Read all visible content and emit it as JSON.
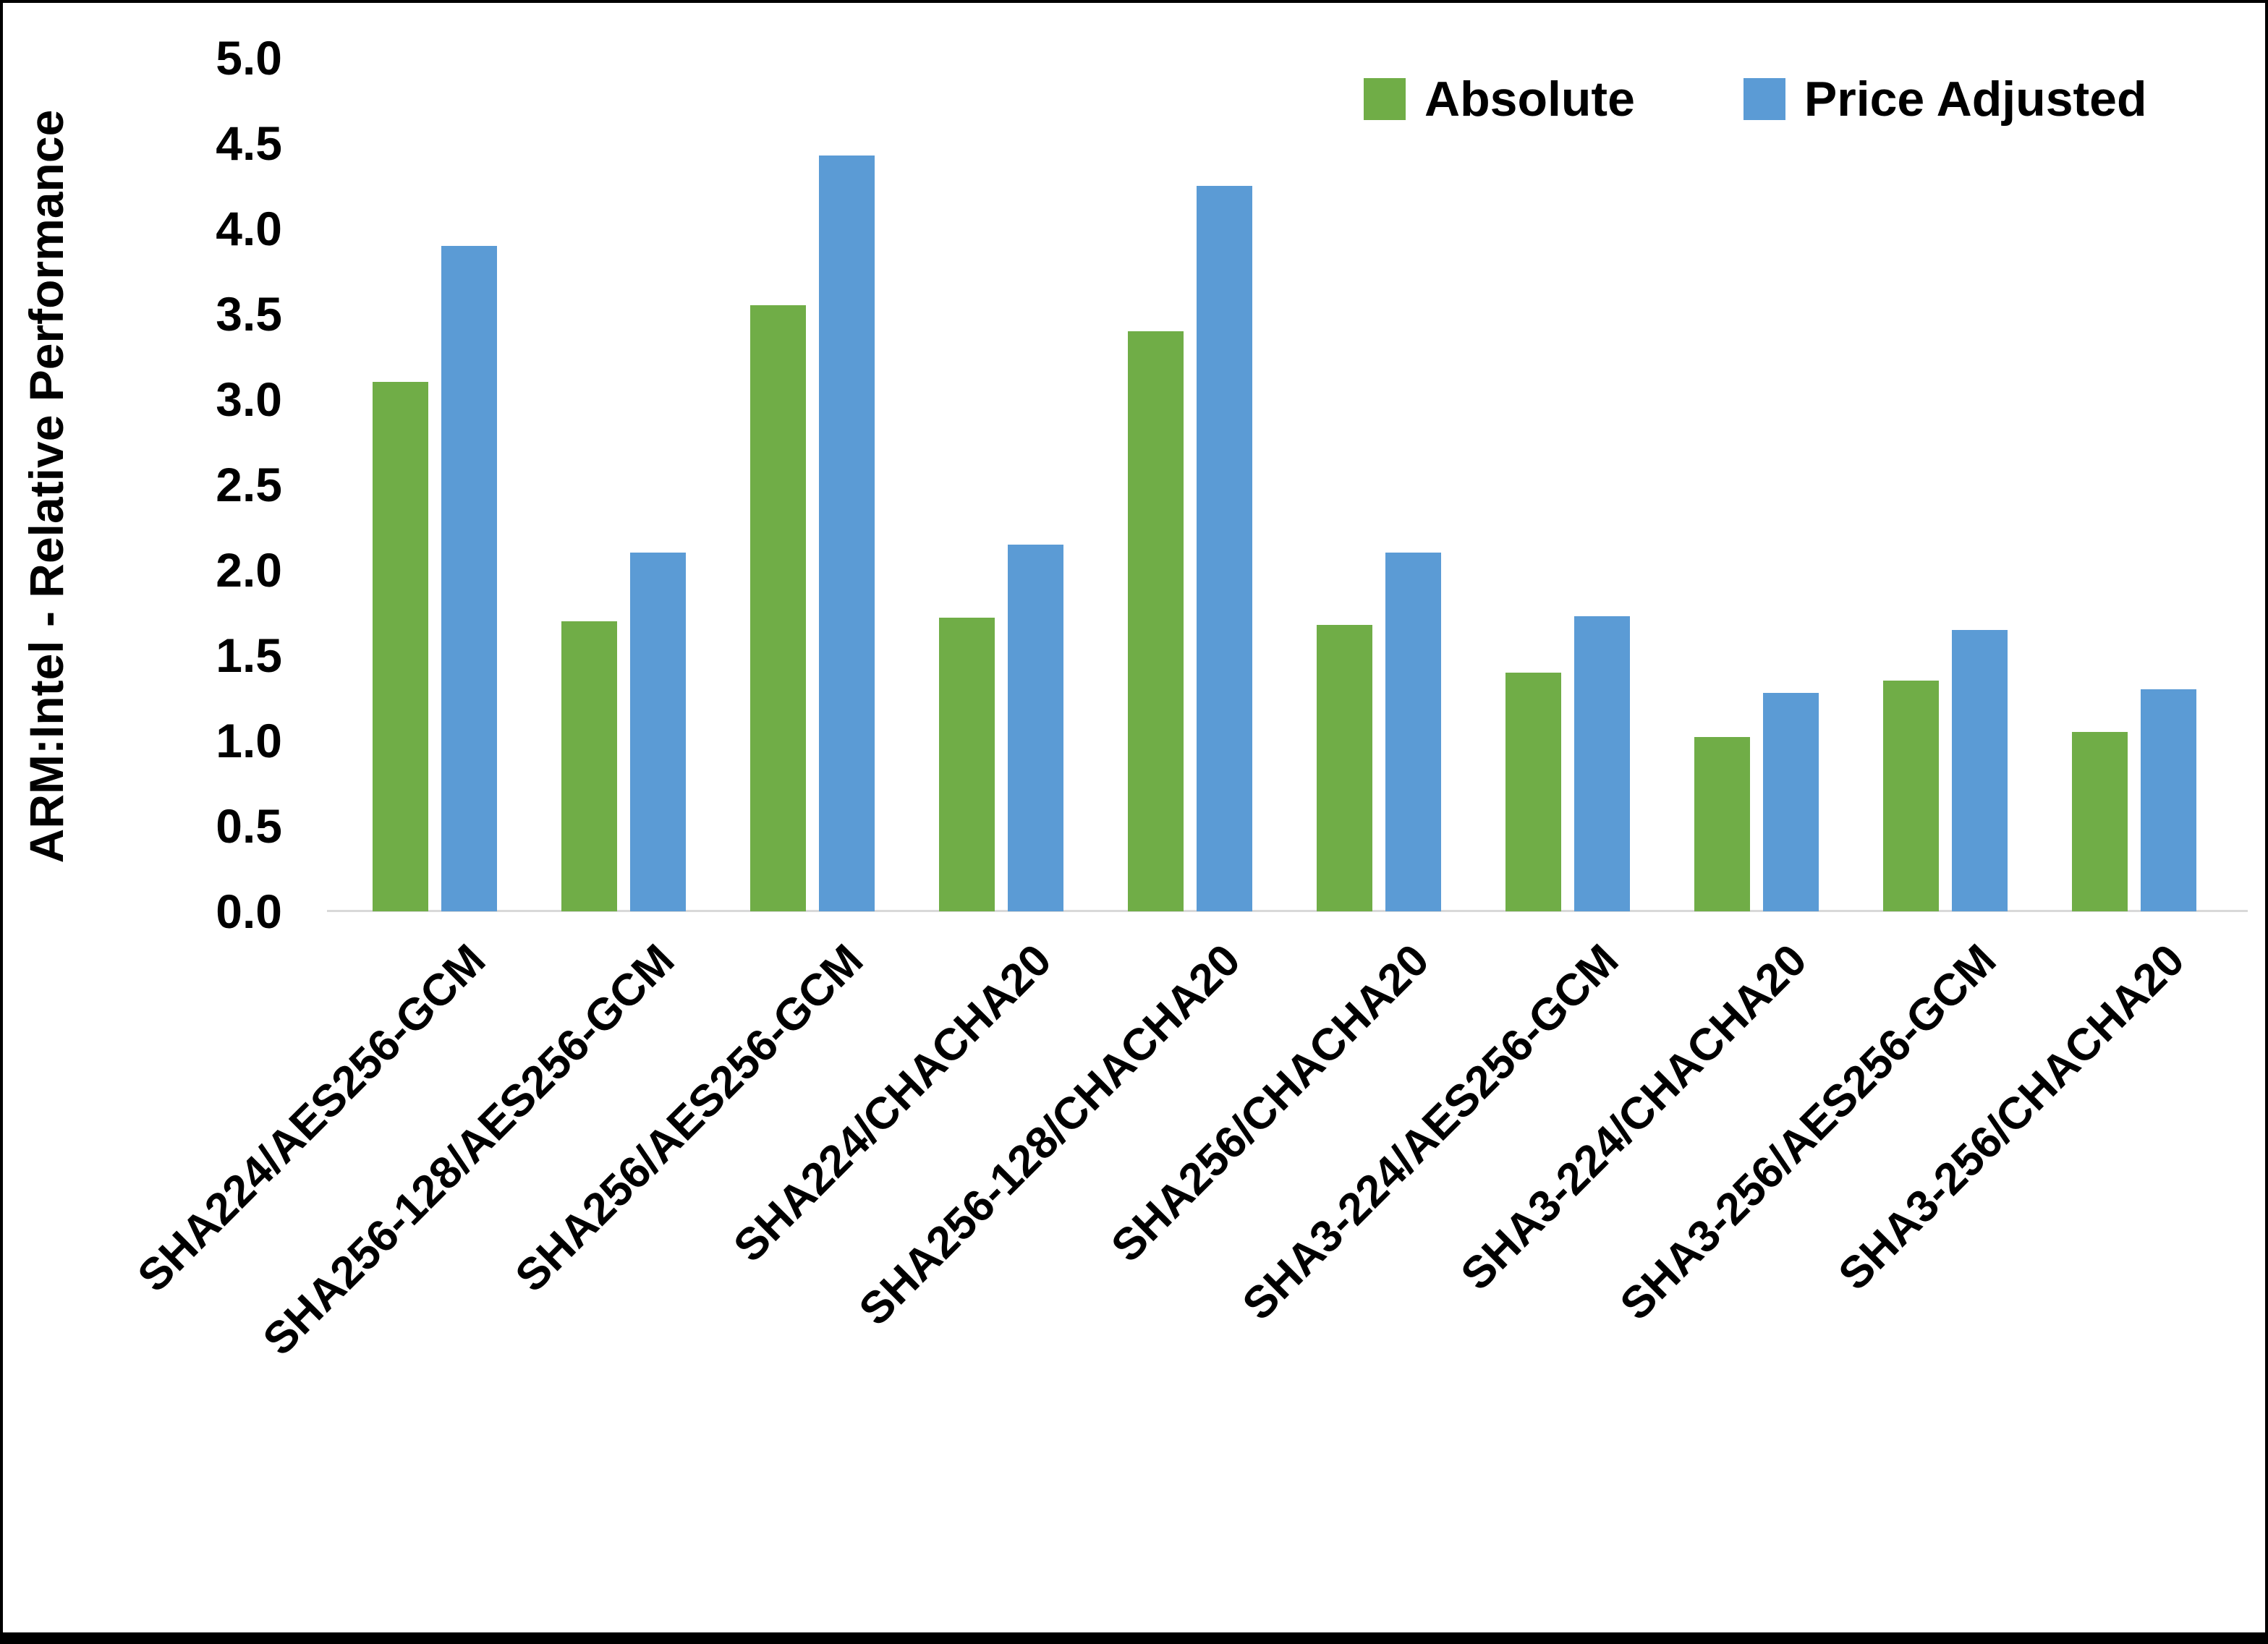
{
  "chart_data": {
    "type": "bar",
    "title": "",
    "xlabel": "",
    "ylabel": "ARM:Intel - Relative Performance",
    "ylim": [
      0,
      5
    ],
    "ytick_step": 0.5,
    "yticks": [
      "0.0",
      "0.5",
      "1.0",
      "1.5",
      "2.0",
      "2.5",
      "3.0",
      "3.5",
      "4.0",
      "4.5",
      "5.0"
    ],
    "grid": false,
    "legend_position": "top-right",
    "categories": [
      "SHA224/AES256-GCM",
      "SHA256-128/AES256-GCM",
      "SHA256/AES256-GCM",
      "SHA224/CHACHA20",
      "SHA256-128/CHACHA20",
      "SHA256/CHACHA20",
      "SHA3-224/AES256-GCM",
      "SHA3-224/CHACHA20",
      "SHA3-256/AES256-GCM",
      "SHA3-256/CHACHA20"
    ],
    "series": [
      {
        "name": "Absolute",
        "color": "#70AD47",
        "values": [
          3.1,
          1.7,
          3.55,
          1.72,
          3.4,
          1.68,
          1.4,
          1.02,
          1.35,
          1.05
        ]
      },
      {
        "name": "Price Adjusted",
        "color": "#5B9BD5",
        "values": [
          3.9,
          2.1,
          4.43,
          2.15,
          4.25,
          2.1,
          1.73,
          1.28,
          1.65,
          1.3
        ]
      }
    ]
  },
  "colors": {
    "axis_line": "#D9D9D9",
    "text": "#000000",
    "frame": "#000000",
    "background": "#FFFFFF"
  }
}
